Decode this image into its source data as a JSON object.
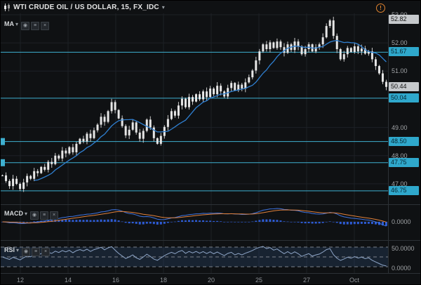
{
  "header": {
    "title": "WTI CRUDE OIL / US DOLLAR, 15, FX_IDC",
    "alert_badge": "!"
  },
  "ui": {
    "caret": "▾"
  },
  "legends": {
    "ma": {
      "label": "MA"
    },
    "macd": {
      "label": "MACD"
    },
    "rsi": {
      "label": "RSI"
    }
  },
  "legend_buttons": [
    {
      "name": "eye",
      "glyph": "◉"
    },
    {
      "name": "settings",
      "glyph": "≡"
    },
    {
      "name": "close",
      "glyph": "×"
    }
  ],
  "price_axis": {
    "gridlines": [
      "53.00",
      "52.00",
      "51.00",
      "49.00",
      "48.00",
      "47.00"
    ],
    "tags": [
      {
        "text": "52.82",
        "price": 52.82,
        "style": "gray"
      },
      {
        "text": "51.67",
        "price": 51.67,
        "style": "cyan"
      },
      {
        "text": "50.44",
        "price": 50.44,
        "style": "gray"
      },
      {
        "text": "50.04",
        "price": 50.04,
        "style": "cyan"
      },
      {
        "text": "48.50",
        "price": 48.5,
        "style": "cyan"
      },
      {
        "text": "47.75",
        "price": 47.75,
        "style": "cyan"
      },
      {
        "text": "46.75",
        "price": 46.75,
        "style": "cyan"
      }
    ]
  },
  "macd_axis": [
    "0.0000"
  ],
  "rsi_axis": [
    "50.0000",
    "0.0000"
  ],
  "time_axis": [
    "12",
    "14",
    "16",
    "18",
    "20",
    "25",
    "27",
    "Oct"
  ],
  "colors": {
    "bg": "#0f1113",
    "grid": "#1d2126",
    "candle": "#e6e6e6",
    "wick": "#c9c9c9",
    "ma": "#2f7fd0",
    "level": "#3fb0d0",
    "tag_cyan": "#2fa8cc",
    "tag_gray": "#c6c9cc",
    "macd_hist": "#2d5bd4",
    "macd_line": "#3f74e0",
    "macd_signal": "#e0813c",
    "rsi_line": "#8fa6c8",
    "rsi_band": "rgba(52,82,130,0.28)",
    "rsi_dash": "#7b828c",
    "alert_orange": "#e2842f"
  },
  "chart_data": {
    "type": "candlestick",
    "title": "WTI CRUDE OIL / US DOLLAR, 15, FX_IDC",
    "ylim": [
      46.3,
      53.05
    ],
    "x_tick_labels": [
      "12",
      "14",
      "16",
      "18",
      "20",
      "25",
      "27",
      "Oct"
    ],
    "levels": [
      51.67,
      50.04,
      48.5,
      47.75,
      46.75
    ],
    "last_price": 50.44,
    "high_tag": 52.82,
    "ma_period": 10,
    "indicators": [
      "MA",
      "MACD",
      "RSI"
    ],
    "closes": [
      47.3,
      47.1,
      46.92,
      47.18,
      47.0,
      46.82,
      47.05,
      47.28,
      47.18,
      47.45,
      47.38,
      47.6,
      47.5,
      47.78,
      47.7,
      48.0,
      47.9,
      48.18,
      48.08,
      48.3,
      48.12,
      48.42,
      48.6,
      48.5,
      48.78,
      48.62,
      48.9,
      49.1,
      49.38,
      49.2,
      49.58,
      49.9,
      49.62,
      49.32,
      49.05,
      48.72,
      48.92,
      49.18,
      48.82,
      48.6,
      48.88,
      49.28,
      49.0,
      48.62,
      48.42,
      48.7,
      49.02,
      49.3,
      49.58,
      49.42,
      49.78,
      50.02,
      49.72,
      50.08,
      49.92,
      50.18,
      50.0,
      50.28,
      50.08,
      50.38,
      50.18,
      50.48,
      50.28,
      50.1,
      50.4,
      50.58,
      50.32,
      50.52,
      50.38,
      50.6,
      50.78,
      51.02,
      51.38,
      51.7,
      51.95,
      51.78,
      52.02,
      51.82,
      52.05,
      51.85,
      51.65,
      51.95,
      51.75,
      52.05,
      51.88,
      51.6,
      51.78,
      51.95,
      51.7,
      51.85,
      51.95,
      52.2,
      52.6,
      52.8,
      52.25,
      51.78,
      51.42,
      51.6,
      51.82,
      51.68,
      51.88,
      51.7,
      51.8,
      51.62,
      51.7,
      51.42,
      51.18,
      50.92,
      50.62,
      50.44
    ]
  }
}
